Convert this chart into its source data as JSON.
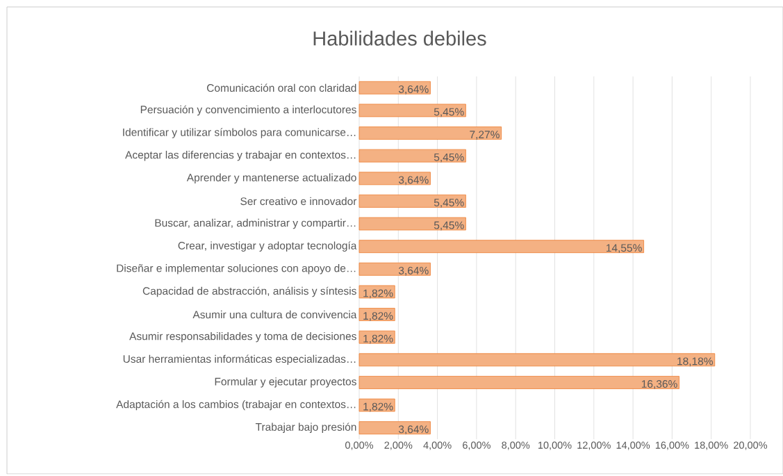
{
  "chart_data": {
    "type": "bar",
    "orientation": "horizontal",
    "title": "Habilidades debiles",
    "categories": [
      "Comunicación oral con claridad",
      "Persuación y convencimiento a interlocutores",
      "Identificar y utilizar símbolos para comunicarse…",
      "Aceptar las diferencias y trabajar en contextos…",
      "Aprender y mantenerse actualizado",
      "Ser creativo e innovador",
      "Buscar, analizar, administrar y compartir…",
      "Crear, investigar y adoptar tecnología",
      "Diseñar e implementar soluciones con apoyo de…",
      "Capacidad de abstracción, análisis y síntesis",
      "Asumir una cultura de convivencia",
      "Asumir responsabilidades y toma de decisiones",
      "Usar herramientas informáticas especializadas…",
      "Formular y ejecutar proyectos",
      "Adaptación a los cambios (trabajar en contextos…",
      "Trabajar bajo presión"
    ],
    "values": [
      3.64,
      5.45,
      7.27,
      5.45,
      3.64,
      5.45,
      5.45,
      14.55,
      3.64,
      1.82,
      1.82,
      1.82,
      18.18,
      16.36,
      1.82,
      3.64
    ],
    "value_labels": [
      "3,64%",
      "5,45%",
      "7,27%",
      "5,45%",
      "3,64%",
      "5,45%",
      "5,45%",
      "14,55%",
      "3,64%",
      "1,82%",
      "1,82%",
      "1,82%",
      "18,18%",
      "16,36%",
      "1,82%",
      "3,64%"
    ],
    "color": "#f4b183",
    "xlim": [
      0,
      20
    ],
    "xticks": [
      {
        "value": 0,
        "label": "0,00%"
      },
      {
        "value": 2,
        "label": "2,00%"
      },
      {
        "value": 4,
        "label": "4,00%"
      },
      {
        "value": 6,
        "label": "6,00%"
      },
      {
        "value": 8,
        "label": "8,00%"
      },
      {
        "value": 10,
        "label": "10,00%"
      },
      {
        "value": 12,
        "label": "12,00%"
      },
      {
        "value": 14,
        "label": "14,00%"
      },
      {
        "value": 16,
        "label": "16,00%"
      },
      {
        "value": 18,
        "label": "18,00%"
      },
      {
        "value": 20,
        "label": "20,00%"
      }
    ],
    "grid": "x"
  }
}
